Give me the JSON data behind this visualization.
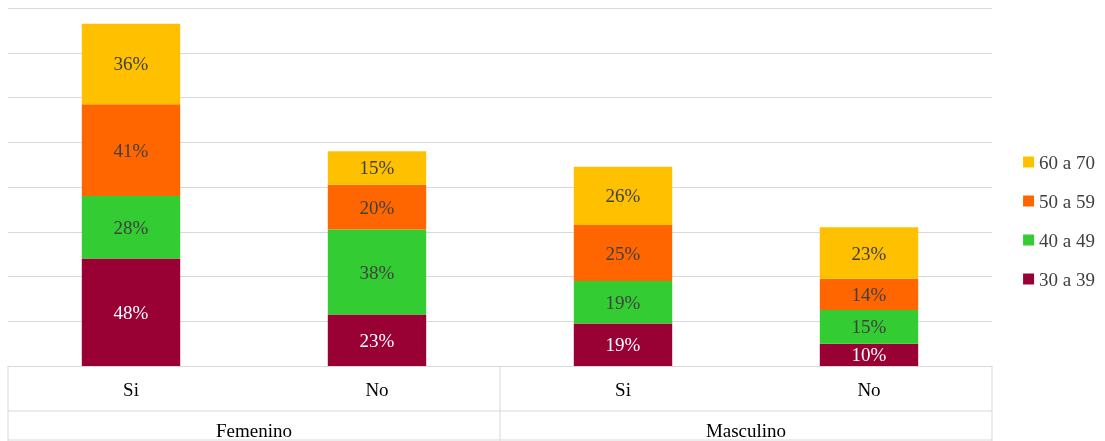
{
  "chart_data": {
    "type": "bar",
    "stacked": true,
    "categories": [
      "Si",
      "No",
      "Si",
      "No"
    ],
    "annotations": [
      "Femenino",
      "Masculino"
    ],
    "series": [
      {
        "name": "30 a 39",
        "color": "#990033",
        "values": [
          48,
          23,
          19,
          10
        ],
        "value_labels": [
          "48%",
          "23%",
          "19%",
          "10%"
        ]
      },
      {
        "name": "40 a 49",
        "color": "#33cc33",
        "values": [
          28,
          38,
          19,
          15
        ],
        "value_labels": [
          "28%",
          "38%",
          "19%",
          "15%"
        ]
      },
      {
        "name": "50 a 59",
        "color": "#ff6600",
        "values": [
          41,
          20,
          25,
          14
        ],
        "value_labels": [
          "41%",
          "20%",
          "25%",
          "14%"
        ]
      },
      {
        "name": "60 a 70",
        "color": "#ffc000",
        "values": [
          36,
          15,
          26,
          23
        ],
        "value_labels": [
          "36%",
          "15%",
          "26%",
          "23%"
        ]
      }
    ],
    "grid": "y",
    "legend": "right",
    "tick_labels": "x"
  }
}
